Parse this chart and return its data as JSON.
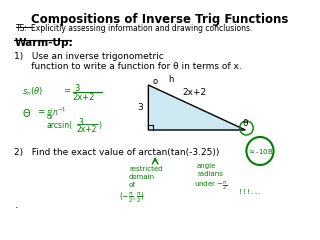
{
  "title": "Compositions of Inverse Trig Functions",
  "subtitle_ts": "TS:",
  "subtitle_rest": "Explicitly assessing information and drawing conclusions.",
  "warmup_label": "Warm-Up:",
  "item1_line1": "1)   Use an inverse trigonometric",
  "item1_line2": "      function to write a function for θ in terms of x.",
  "item2": "2)   Find the exact value of arctan(tan(-3.25))",
  "dot": ".",
  "triangle_label_h": "h",
  "triangle_label_hyp": "2x+2",
  "triangle_label_opp": "3",
  "triangle_label_theta": "θ",
  "triangle_label_o": "o",
  "background_color": "#ffffff",
  "title_color": "#000000",
  "green_color": "#008000",
  "triangle_fill": "#cce8f0",
  "triangle_stroke": "#000000"
}
